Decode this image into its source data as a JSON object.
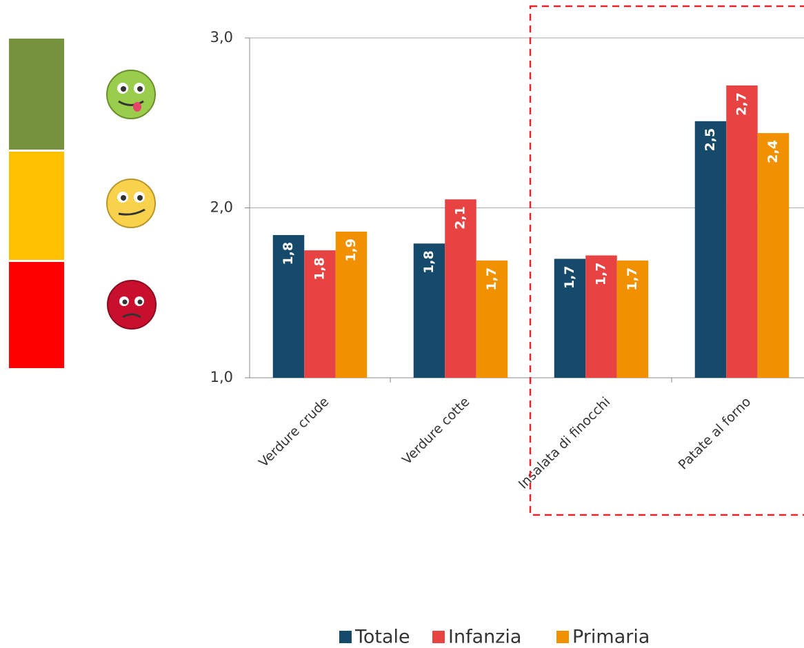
{
  "chart_data": {
    "type": "bar",
    "categories": [
      "Verdure crude",
      "Verdure cotte",
      "Insalata di finocchi",
      "Patate al forno"
    ],
    "series": [
      {
        "name": "Totale",
        "color": "#154a6b",
        "values": [
          1.84,
          1.79,
          1.7,
          2.51
        ],
        "value_labels": [
          "1,8",
          "1,8",
          "1,7",
          "2,5"
        ]
      },
      {
        "name": "Infanzia",
        "color": "#e84343",
        "values": [
          1.75,
          2.05,
          1.72,
          2.72
        ],
        "value_labels": [
          "1,8",
          "2,1",
          "1,7",
          "2,7"
        ]
      },
      {
        "name": "Primaria",
        "color": "#f29100",
        "values": [
          1.86,
          1.69,
          1.69,
          2.44
        ],
        "value_labels": [
          "1,9",
          "1,7",
          "1,7",
          "2,4"
        ]
      }
    ],
    "ylim": [
      1,
      3
    ],
    "yticks": [
      {
        "value": 1,
        "label": "1,0"
      },
      {
        "value": 2,
        "label": "2,0"
      },
      {
        "value": 3,
        "label": "3,0"
      }
    ],
    "grid": true,
    "legend": "bottom"
  }
}
